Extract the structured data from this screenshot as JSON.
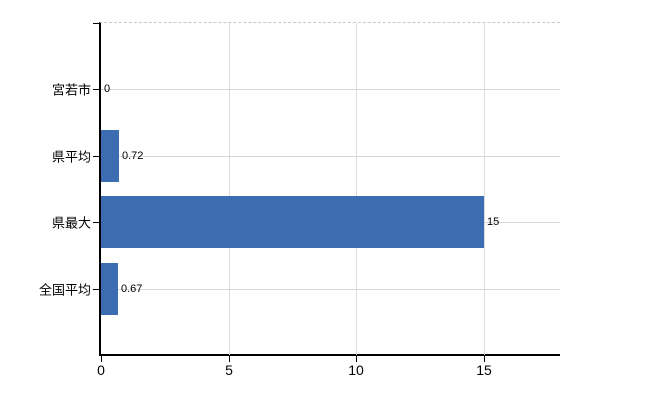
{
  "chart_data": {
    "type": "bar",
    "orientation": "horizontal",
    "title": "",
    "xlabel": "",
    "ylabel": "",
    "categories": [
      "宮若市",
      "県平均",
      "県最大",
      "全国平均"
    ],
    "values": [
      0,
      0.72,
      15,
      0.67
    ],
    "value_labels": [
      "0",
      "0.72",
      "15",
      "0.67"
    ],
    "x_ticks": [
      0,
      5,
      10,
      15
    ],
    "x_tick_labels": [
      "0",
      "5",
      "10",
      "15"
    ],
    "xlim": [
      0,
      18
    ],
    "grid": true,
    "legend": "none",
    "colors": {
      "bar": "#3c6db2",
      "h_gridline": "#d5d9d2",
      "v_gridline": "#dcdcdc",
      "axis": "#000000",
      "text": "#000000",
      "background": "#ffffff"
    }
  }
}
